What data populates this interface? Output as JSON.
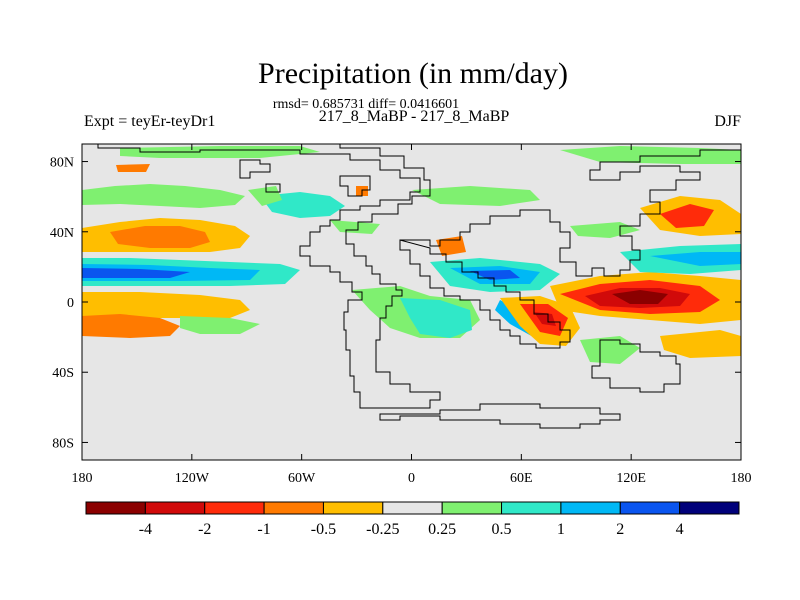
{
  "title": "Precipitation (in mm/day)",
  "stats": "rmsd= 0.685731 diff= 0.0416601",
  "left_label": "Expt = teyEr-teyDr1",
  "center_label": "217_8_MaBP - 217_8_MaBP",
  "right_label": "DJF",
  "chart_data": {
    "type": "heatmap",
    "title": "Precipitation (in mm/day)",
    "variable": "Precipitation difference",
    "units": "mm/day",
    "season": "DJF",
    "x_axis": {
      "range": [
        -180,
        180
      ],
      "ticks": [
        -180,
        -120,
        -60,
        0,
        60,
        120,
        180
      ],
      "tick_labels": [
        "180",
        "120W",
        "60W",
        "0",
        "60E",
        "120E",
        "180"
      ]
    },
    "y_axis": {
      "range": [
        -90,
        90
      ],
      "ticks": [
        80,
        40,
        0,
        -40,
        -80
      ],
      "tick_labels": [
        "80N",
        "40N",
        "0",
        "40S",
        "80S"
      ]
    },
    "colorbar": {
      "levels": [
        "-4",
        "-2",
        "-1",
        "-0.5",
        "-0.25",
        "0.25",
        "0.5",
        "1",
        "2",
        "4"
      ],
      "colors": [
        "#8b0000",
        "#d10a0a",
        "#ff2b0a",
        "#ff7a00",
        "#ffbe00",
        "#e6e6e6",
        "#7ff070",
        "#30e8c8",
        "#00b8f5",
        "#0a55ef",
        "#00007a"
      ]
    },
    "background_color": "#e6e6e6",
    "anomalies": [
      {
        "lon": 120,
        "lat": 2,
        "value": -5
      },
      {
        "lon": -160,
        "lat": 6,
        "value": 2.5
      },
      {
        "lon": 40,
        "lat": 7,
        "value": 2.5
      },
      {
        "lon": -130,
        "lat": 32,
        "value": -0.75
      },
      {
        "lon": -150,
        "lat": -15,
        "value": -0.75
      },
      {
        "lon": 55,
        "lat": -15,
        "value": -1.5
      },
      {
        "lon": 145,
        "lat": 38,
        "value": -1.5
      },
      {
        "lon": -30,
        "lat": -15,
        "value": 0.75
      }
    ]
  }
}
